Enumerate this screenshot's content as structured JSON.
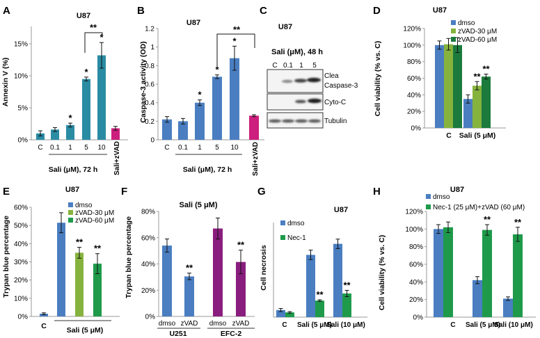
{
  "colors": {
    "teal": "#2a8ca3",
    "blue": "#4a7ec1",
    "magenta": "#cc1f7e",
    "lightgreen": "#86b33d",
    "green": "#1e9a4a",
    "darkgreen": "#1b7a3c",
    "purple": "#8a1e7e",
    "black": "#222222"
  },
  "chart_data": [
    {
      "panel": "A",
      "type": "bar",
      "title": "U87",
      "ylabel": "Annexin V (%)",
      "xlabel": "Sali (μM), 72 h",
      "ylim": [
        0,
        17
      ],
      "yticks": [
        "0%",
        "5%",
        "10%",
        "15%"
      ],
      "categories": [
        "C",
        "0.1",
        "1",
        "5",
        "10",
        "Sali+zVAD"
      ],
      "values": [
        1.0,
        1.6,
        2.3,
        9.5,
        13.2,
        1.8
      ],
      "errors": [
        0.4,
        0.3,
        0.3,
        0.3,
        2.0,
        0.3
      ],
      "bar_colors": [
        "teal",
        "teal",
        "teal",
        "teal",
        "teal",
        "magenta"
      ],
      "significance": [
        "",
        "",
        "*",
        "*",
        "*",
        ""
      ],
      "bracket": "**"
    },
    {
      "panel": "B",
      "type": "bar",
      "title": "U87",
      "ylabel": "Caspase-3 activity (OD)",
      "xlabel": "Sali (μM), 72 h",
      "ylim": [
        0,
        1.2
      ],
      "yticks": [
        "0",
        "0.2",
        "0.4",
        "0.6",
        "0.8",
        "1",
        "1.2"
      ],
      "categories": [
        "C",
        "0.1",
        "1",
        "5",
        "10",
        "Sali+zVAD"
      ],
      "values": [
        0.22,
        0.2,
        0.4,
        0.68,
        0.88,
        0.26
      ],
      "errors": [
        0.03,
        0.03,
        0.03,
        0.02,
        0.13,
        0.01
      ],
      "bar_colors": [
        "blue",
        "blue",
        "blue",
        "blue",
        "blue",
        "magenta"
      ],
      "significance": [
        "",
        "",
        "*",
        "*",
        "*",
        ""
      ],
      "bracket": "**"
    },
    {
      "panel": "D",
      "type": "bar",
      "title": "U87",
      "ylabel": "Cell viability (% vs. C)",
      "ylim": [
        0,
        120
      ],
      "yticks": [
        "0%",
        "20%",
        "40%",
        "60%",
        "80%",
        "100%",
        "120%"
      ],
      "categories": [
        "C",
        "Sali (5 μM)"
      ],
      "series": [
        {
          "name": "dmso",
          "color": "blue",
          "values": [
            100,
            35
          ],
          "errors": [
            5,
            5
          ],
          "significance": [
            "",
            ""
          ]
        },
        {
          "name": "zVAD-30 μM",
          "color": "lightgreen",
          "values": [
            101,
            51
          ],
          "errors": [
            7,
            5
          ],
          "significance": [
            "",
            "**"
          ]
        },
        {
          "name": "zVAD-60 μM",
          "color": "darkgreen",
          "values": [
            100,
            62
          ],
          "errors": [
            9,
            3
          ],
          "significance": [
            "",
            "**"
          ]
        }
      ]
    },
    {
      "panel": "E",
      "type": "bar",
      "title": "U87",
      "ylabel": "Trypan blue percentage",
      "xlabel": "Sali (5 μM)",
      "ylim": [
        0,
        60
      ],
      "yticks": [
        "0%",
        "10%",
        "20%",
        "30%",
        "40%",
        "50%",
        "60%"
      ],
      "categories": [
        "C",
        "dmso",
        "zVAD-30 μM",
        "zVAD-60 μM"
      ],
      "values": [
        1.5,
        51.5,
        35,
        29
      ],
      "errors": [
        0.5,
        5.5,
        3,
        5.5
      ],
      "bar_colors": [
        "blue",
        "blue",
        "lightgreen",
        "green"
      ],
      "significance": [
        "",
        "",
        "**",
        "**"
      ],
      "legend": [
        "dmso",
        "zVAD-30 μM",
        "zVAD-60 μM"
      ]
    },
    {
      "panel": "F",
      "type": "bar",
      "title": "Sali (5 μM)",
      "ylabel": "Trypan blue percentage",
      "ylim": [
        0,
        80
      ],
      "yticks": [
        "0%",
        "20%",
        "40%",
        "60%",
        "80%"
      ],
      "categories": [
        "dmso",
        "zVAD",
        "dmso",
        "zVAD"
      ],
      "groups": [
        "U251",
        "EFC-2"
      ],
      "values": [
        54,
        30.5,
        67,
        41.5
      ],
      "errors": [
        5,
        2.5,
        8,
        9
      ],
      "bar_colors": [
        "blue",
        "blue",
        "purple",
        "purple"
      ],
      "significance": [
        "",
        "**",
        "",
        "**"
      ]
    },
    {
      "panel": "G",
      "type": "bar",
      "title": "U87",
      "ylabel": "Cell necrosis",
      "ylim": [
        0,
        0.6
      ],
      "categories": [
        "C",
        "Sali (5 μM)",
        "Sali (10 μM)"
      ],
      "series": [
        {
          "name": "dmso",
          "color": "blue",
          "values": [
            0.045,
            0.395,
            0.465
          ],
          "errors": [
            0.01,
            0.03,
            0.03
          ],
          "significance": [
            "",
            "",
            ""
          ]
        },
        {
          "name": "Nec-1",
          "color": "green",
          "values": [
            0.03,
            0.105,
            0.15
          ],
          "errors": [
            0.005,
            0.005,
            0.02
          ],
          "significance": [
            "",
            "**",
            "**"
          ]
        }
      ]
    },
    {
      "panel": "H",
      "type": "bar",
      "title": "U87",
      "ylabel": "Cell viability (% vs. C)",
      "ylim": [
        0,
        120
      ],
      "yticks": [
        "0%",
        "20%",
        "40%",
        "60%",
        "80%",
        "100%",
        "120%"
      ],
      "categories": [
        "C",
        "Sali (5 μM)",
        "Sali (10 μM)"
      ],
      "series": [
        {
          "name": "dmso",
          "color": "blue",
          "values": [
            100,
            42,
            21
          ],
          "errors": [
            5,
            4,
            2
          ],
          "significance": [
            "",
            "",
            ""
          ]
        },
        {
          "name": "Nec-1 (25 μM)+zVAD (60 μM)",
          "color": "green",
          "values": [
            102,
            99,
            94
          ],
          "errors": [
            6,
            6,
            8
          ],
          "significance": [
            "",
            "**",
            "**"
          ]
        }
      ]
    }
  ],
  "blot": {
    "panel": "C",
    "title": "U87",
    "condition": "Sali (μM), 48 h",
    "lanes": [
      "C",
      "0.1",
      "1",
      "5"
    ],
    "bands": [
      "Clea Caspase-3",
      "Cyto-C",
      "Tubulin"
    ],
    "band_label_1": "Clea",
    "band_label_1b": "Caspase-3",
    "band_label_2": "Cyto-C",
    "band_label_3": "Tubulin"
  }
}
